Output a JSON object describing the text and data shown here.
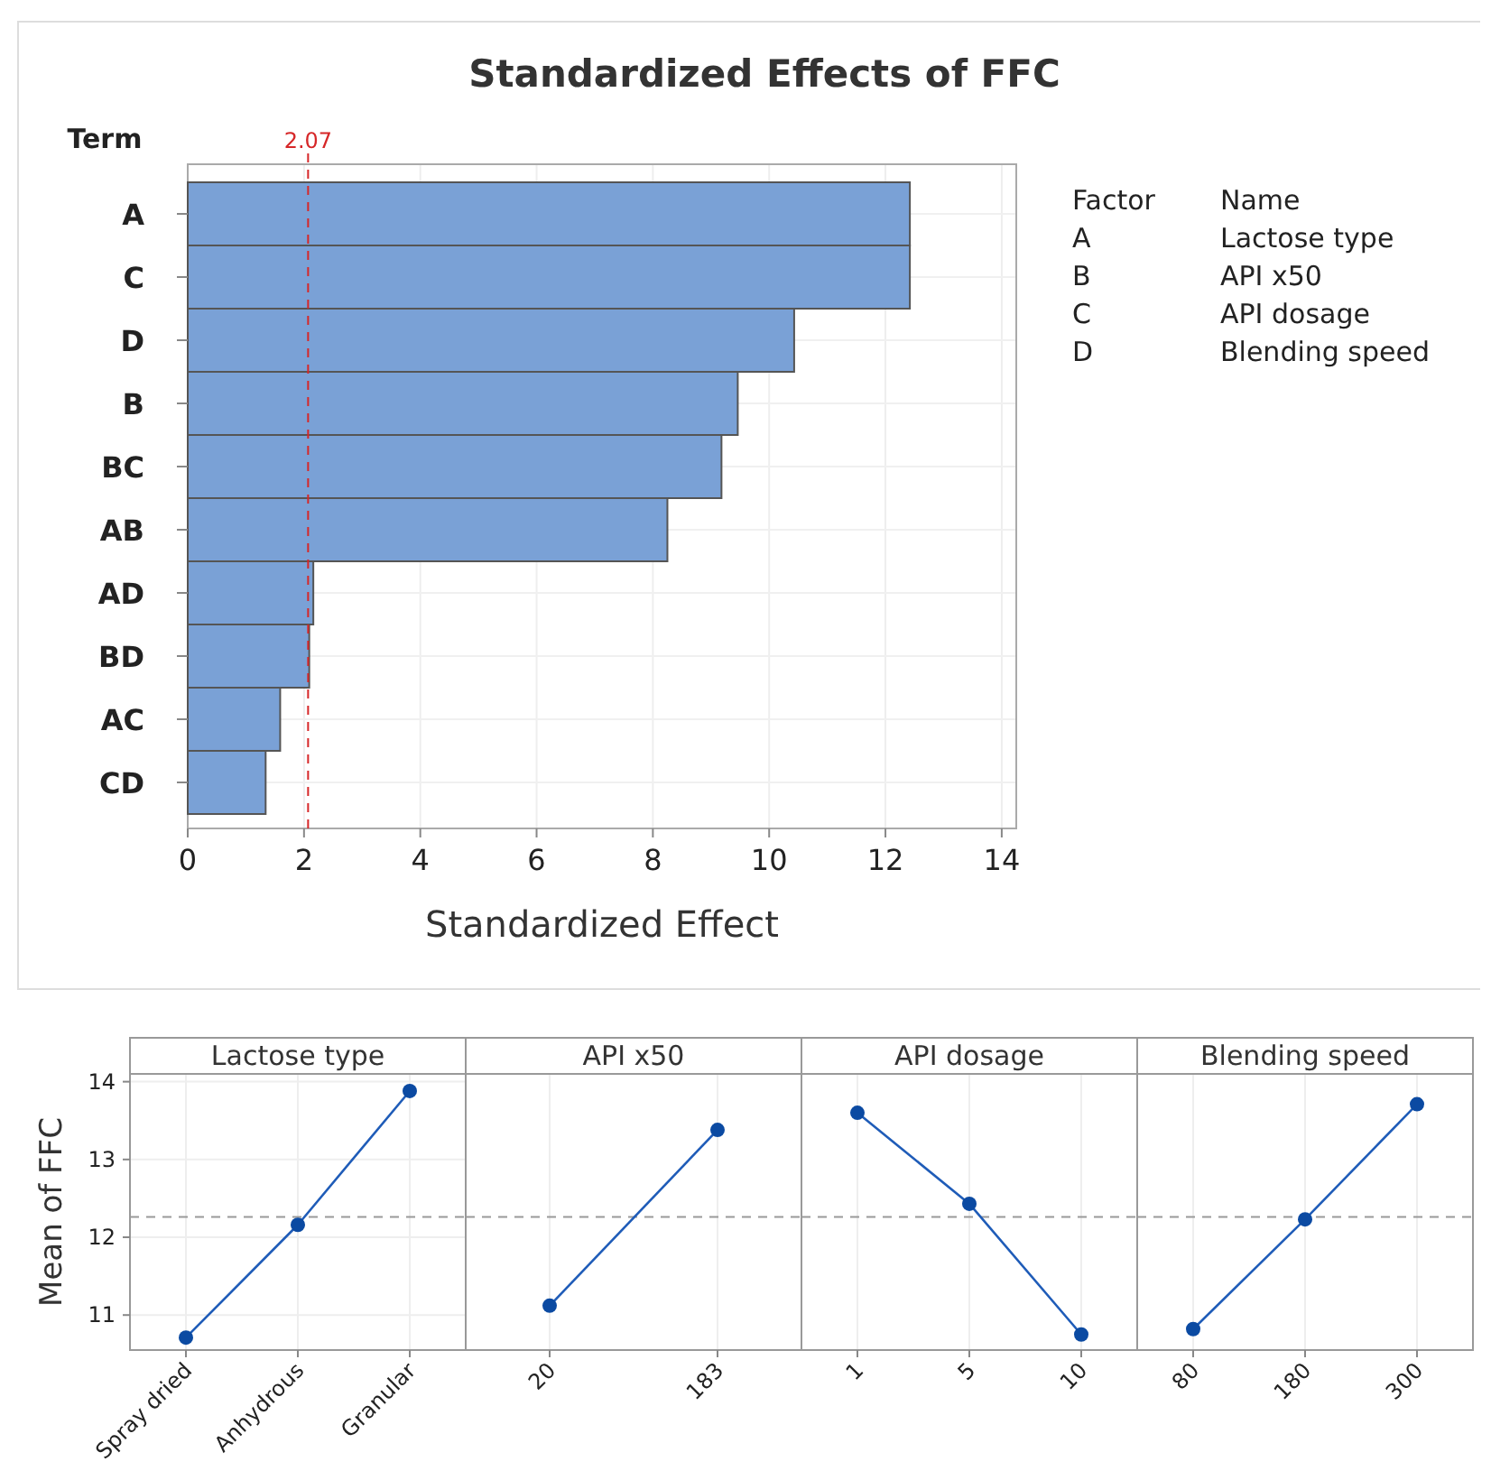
{
  "chart_data": [
    {
      "type": "bar",
      "orientation": "horizontal",
      "title": "Standardized Effects of FFC",
      "xlabel": "Standardized Effect",
      "ylabel": "Term",
      "categories": [
        "A",
        "C",
        "D",
        "B",
        "BC",
        "AB",
        "AD",
        "BD",
        "AC",
        "CD"
      ],
      "values": [
        12.42,
        12.42,
        10.43,
        9.46,
        9.18,
        8.25,
        2.16,
        2.09,
        1.59,
        1.34
      ],
      "color": "#7aa1d6",
      "xlim": [
        0,
        14.25
      ],
      "xticks": [
        0,
        2,
        4,
        6,
        8,
        10,
        12,
        14
      ],
      "grid": true,
      "ref_lines": [
        {
          "axis": "x",
          "value": 2.07,
          "label": "2.07",
          "color": "#d62728",
          "line_style": "dashed"
        }
      ],
      "annotations": [
        "Factor",
        "Name",
        "A",
        "Lactose type",
        "B",
        "API x50",
        "C",
        "API dosage",
        "D",
        "Blending speed"
      ]
    },
    {
      "type": "line",
      "title": "Lactose type",
      "ylabel": "Mean of FFC",
      "categories": [
        "Spray dried",
        "Anhydrous",
        "Granular"
      ],
      "series": [
        {
          "color": "#1f5cb8",
          "values": [
            10.71,
            12.16,
            13.88
          ]
        }
      ],
      "ylim": [
        10.55,
        14.1
      ],
      "yticks": [
        11,
        12,
        13,
        14
      ],
      "grid": true,
      "marker": "circle",
      "ref_lines": [
        {
          "axis": "y",
          "value": 12.26,
          "color": "#999999",
          "line_style": "dashed"
        }
      ],
      "tick_labels": true
    },
    {
      "type": "line",
      "title": "API x50",
      "categories": [
        "20",
        "183"
      ],
      "series": [
        {
          "color": "#1f5cb8",
          "values": [
            11.12,
            13.38
          ]
        }
      ],
      "ylim": [
        10.55,
        14.1
      ],
      "grid": true,
      "marker": "circle",
      "ref_lines": [
        {
          "axis": "y",
          "value": 12.26,
          "color": "#999999",
          "line_style": "dashed"
        }
      ],
      "tick_labels": "x"
    },
    {
      "type": "line",
      "title": "API dosage",
      "categories": [
        "1",
        "5",
        "10"
      ],
      "series": [
        {
          "color": "#1f5cb8",
          "values": [
            13.6,
            12.43,
            10.75
          ]
        }
      ],
      "ylim": [
        10.55,
        14.1
      ],
      "grid": true,
      "marker": "circle",
      "ref_lines": [
        {
          "axis": "y",
          "value": 12.26,
          "color": "#999999",
          "line_style": "dashed"
        }
      ],
      "tick_labels": "x"
    },
    {
      "type": "line",
      "title": "Blending speed",
      "categories": [
        "80",
        "180",
        "300"
      ],
      "series": [
        {
          "color": "#1f5cb8",
          "values": [
            10.82,
            12.23,
            13.71
          ]
        }
      ],
      "ylim": [
        10.55,
        14.1
      ],
      "grid": true,
      "marker": "circle",
      "ref_lines": [
        {
          "axis": "y",
          "value": 12.26,
          "color": "#999999",
          "line_style": "dashed"
        }
      ],
      "tick_labels": "x"
    }
  ]
}
